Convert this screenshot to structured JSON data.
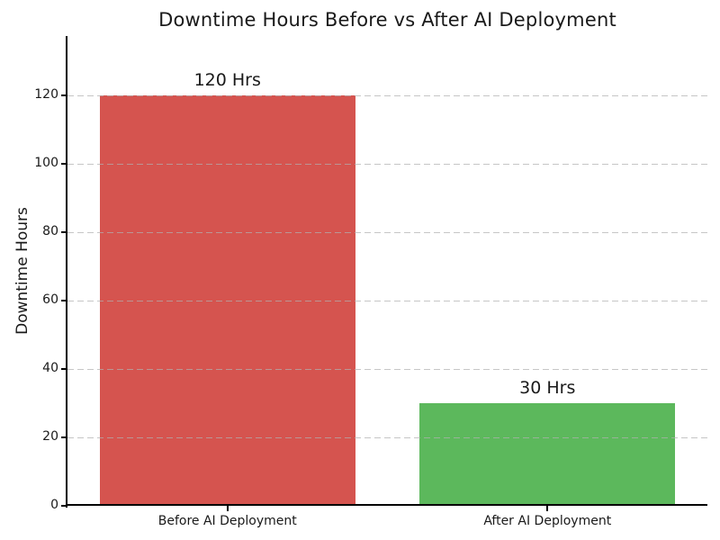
{
  "figure": {
    "background": "#ffffff",
    "text_color": "#1a1a1a"
  },
  "chart_data": {
    "type": "bar",
    "title": "Downtime Hours Before vs After AI Deployment",
    "categories": [
      "Before AI Deployment",
      "After AI Deployment"
    ],
    "values": [
      120,
      30
    ],
    "bar_labels": [
      "120 Hrs",
      "30 Hrs"
    ],
    "bar_colors": [
      "#d5544f",
      "#5cb85c"
    ],
    "xlabel": "",
    "ylabel": "Downtime Hours",
    "ylim": [
      0,
      137.5
    ],
    "yticks": [
      0,
      20,
      40,
      60,
      80,
      100,
      120
    ],
    "grid": {
      "axis": "y",
      "style": "dashed",
      "color": "#b0b0b0",
      "drawn_over_bars": true
    },
    "legend": "none",
    "axis_color": "#000000"
  }
}
